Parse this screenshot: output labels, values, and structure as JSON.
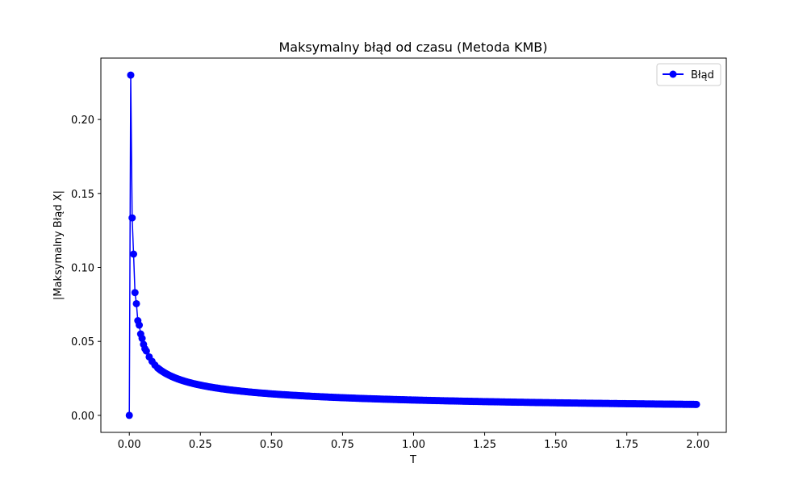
{
  "chart_data": {
    "type": "line",
    "title": "Maksymalny błąd od czasu (Metoda KMB)",
    "xlabel": "T",
    "ylabel": "|Maksymalny Błąd X|",
    "xlim": [
      -0.1,
      2.1
    ],
    "ylim": [
      -0.0115,
      0.2415
    ],
    "xticks": [
      0.0,
      0.25,
      0.5,
      0.75,
      1.0,
      1.25,
      1.5,
      1.75,
      2.0
    ],
    "xtick_labels": [
      "0.00",
      "0.25",
      "0.50",
      "0.75",
      "1.00",
      "1.25",
      "1.50",
      "1.75",
      "2.00"
    ],
    "yticks": [
      0.0,
      0.05,
      0.1,
      0.15,
      0.2
    ],
    "ytick_labels": [
      "0.00",
      "0.05",
      "0.10",
      "0.15",
      "0.20"
    ],
    "grid": false,
    "legend_position": "top-right",
    "series": [
      {
        "name": "Błąd",
        "color": "#0000ff",
        "marker": "circle",
        "x": [
          0.0,
          0.005,
          0.01,
          0.015,
          0.02,
          0.025,
          0.03,
          0.035,
          0.04,
          0.045,
          0.05,
          0.055,
          0.06,
          0.07,
          0.08,
          0.09,
          0.1,
          0.12,
          0.14,
          0.16,
          0.18,
          0.2,
          0.25,
          0.3,
          0.35,
          0.4,
          0.5,
          0.6,
          0.7,
          0.8,
          0.9,
          1.0,
          1.1,
          1.2,
          1.3,
          1.4,
          1.5,
          1.6,
          1.7,
          1.8,
          1.9,
          1.995
        ],
        "values": [
          0.0,
          0.23,
          0.1335,
          0.109,
          0.083,
          0.0755,
          0.064,
          0.061,
          0.055,
          0.052,
          0.048,
          0.045,
          0.0435,
          0.0395,
          0.0365,
          0.034,
          0.032,
          0.029,
          0.0265,
          0.0245,
          0.023,
          0.0215,
          0.0195,
          0.018,
          0.0165,
          0.0155,
          0.014,
          0.013,
          0.012,
          0.0113,
          0.0106,
          0.0101,
          0.0096,
          0.0092,
          0.0089,
          0.0086,
          0.0083,
          0.0081,
          0.0079,
          0.0077,
          0.0075,
          0.0074
        ],
        "dense_tail": {
          "from_x": 0.1,
          "to_x": 1.995,
          "step": 0.005,
          "model": "a/x^p"
        }
      }
    ]
  }
}
